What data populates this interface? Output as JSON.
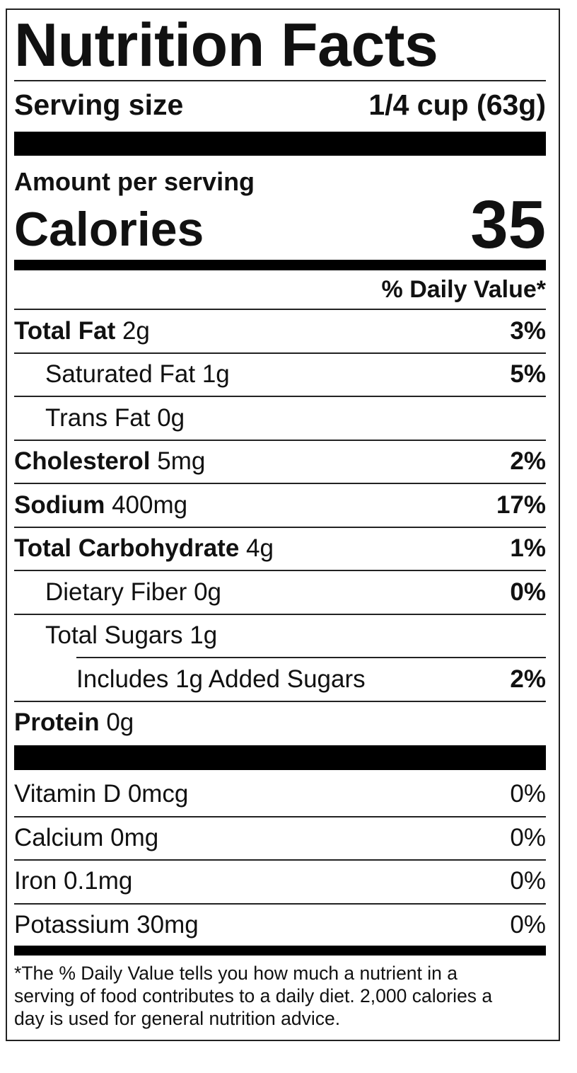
{
  "title": "Nutrition Facts",
  "serving": {
    "label": "Serving size",
    "value": "1/4 cup (63g)"
  },
  "amount_per_serving": "Amount per serving",
  "calories": {
    "label": "Calories",
    "value": "35"
  },
  "daily_value_header": "% Daily Value*",
  "nutrients": [
    {
      "name": "Total Fat",
      "amount": "2g",
      "percent": "3%",
      "sub": [
        {
          "name": "Saturated Fat",
          "amount": "1g",
          "percent": "5%"
        },
        {
          "name": "Trans Fat",
          "amount": "0g"
        }
      ]
    },
    {
      "name": "Cholesterol",
      "amount": "5mg",
      "percent": "2%"
    },
    {
      "name": "Sodium",
      "amount": "400mg",
      "percent": "17%"
    },
    {
      "name": "Total Carbohydrate",
      "amount": "4g",
      "percent": "1%",
      "sub": [
        {
          "name": "Dietary Fiber",
          "amount": "0g",
          "percent": "0%"
        },
        {
          "name": "Total Sugars",
          "amount": "1g",
          "sub": [
            {
              "name": "Includes 1g Added Sugars",
              "percent": "2%"
            }
          ]
        }
      ]
    },
    {
      "name": "Protein",
      "amount": "0g"
    }
  ],
  "vitamins": [
    {
      "name": "Vitamin D",
      "amount": "0mcg",
      "percent": "0%"
    },
    {
      "name": "Calcium",
      "amount": "0mg",
      "percent": "0%"
    },
    {
      "name": "Iron",
      "amount": "0.1mg",
      "percent": "0%"
    },
    {
      "name": "Potassium",
      "amount": "30mg",
      "percent": "0%"
    }
  ],
  "footnote": [
    "*The % Daily Value tells you how much a nutrient in a",
    "serving of food contributes to a daily diet. 2,000 calories a",
    "day is used for general nutrition advice."
  ]
}
